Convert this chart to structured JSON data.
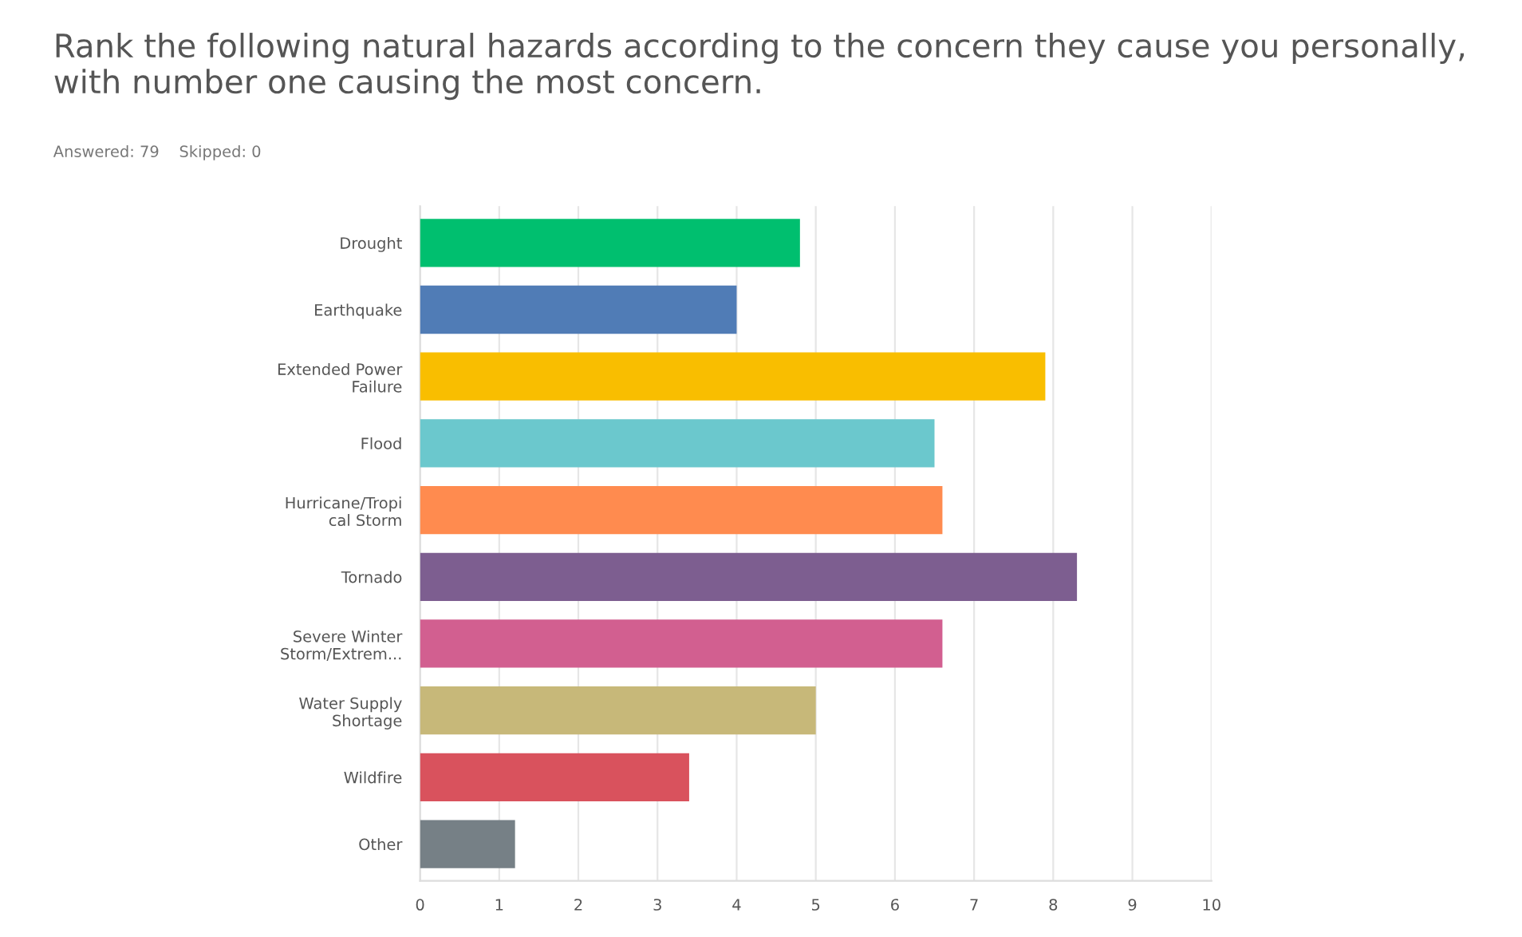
{
  "chart_data": {
    "type": "bar",
    "orientation": "horizontal",
    "title": "Rank the following natural hazards according to the concern they cause you personally, with number one causing the most concern.",
    "subtitle": "Answered: 79    Skipped: 0",
    "categories": [
      "Drought",
      "Earthquake",
      "Extended Power\nFailure",
      "Flood",
      "Hurricane/Tropi\ncal Storm",
      "Tornado",
      "Severe Winter\nStorm/Extrem...",
      "Water Supply\nShortage",
      "Wildfire",
      "Other"
    ],
    "values": [
      4.8,
      4.0,
      7.9,
      6.5,
      6.6,
      8.3,
      6.6,
      5.0,
      3.4,
      1.2
    ],
    "colors": [
      "#00bf6f",
      "#507cb6",
      "#f9be00",
      "#6bc8cd",
      "#ff8b4f",
      "#7d5e90",
      "#d25f90",
      "#c7b879",
      "#d9525d",
      "#768086"
    ],
    "xlim": [
      0,
      10
    ],
    "xticks": [
      0,
      1,
      2,
      3,
      4,
      5,
      6,
      7,
      8,
      9,
      10
    ],
    "grid": "x"
  }
}
